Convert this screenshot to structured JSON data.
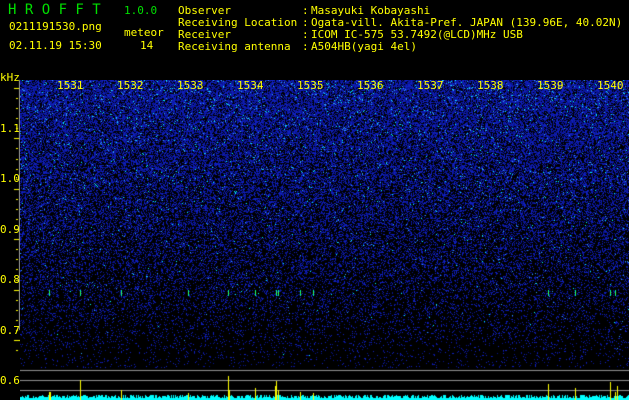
{
  "header": {
    "app_title": "H R O F F T",
    "version": "1.0.0",
    "filename": "0211191530.png",
    "datetime": "02.11.19 15:30",
    "meteor_label": "meteor",
    "meteor_count": "14"
  },
  "info": [
    {
      "label": "Observer",
      "sep": ":",
      "value": "Masayuki Kobayashi"
    },
    {
      "label": "Receiving Location",
      "sep": ":",
      "value": "Ogata-vill. Akita-Pref. JAPAN (139.96E, 40.02N)"
    },
    {
      "label": "Receiver",
      "sep": ":",
      "value": "ICOM IC-575 53.7492(@LCD)MHz USB"
    },
    {
      "label": "Receiving antenna",
      "sep": ":",
      "value": "A504HB(yagi 4el)"
    }
  ],
  "spectrogram": {
    "y_unit": "kHz",
    "y_ticks": [
      "1.1",
      "1.0",
      "0.9",
      "0.8",
      "0.7",
      "0.6"
    ],
    "time_ticks": [
      "1531",
      "1532",
      "1533",
      "1534",
      "1535",
      "1536",
      "1537",
      "1538",
      "1539",
      "1540"
    ],
    "colors": {
      "background": "#000000",
      "noise": "#1a2ad8",
      "echo": "#00ffff",
      "text": "#ffff00",
      "title": "#00e000",
      "signal_bar": "#00ffff",
      "meteor_bar": "#ffff00"
    }
  }
}
